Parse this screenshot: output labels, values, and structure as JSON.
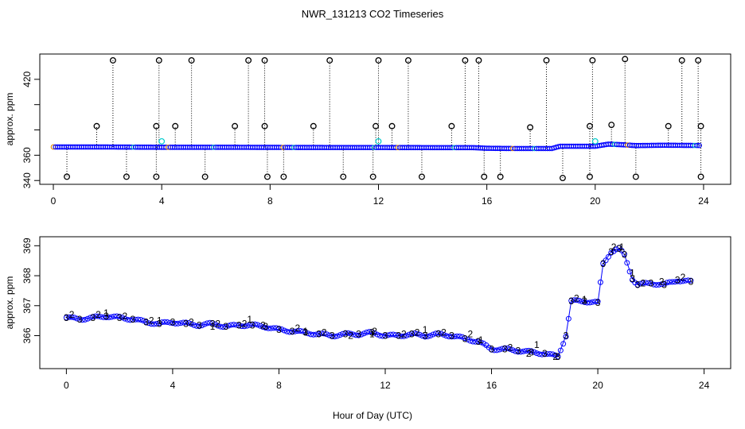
{
  "figure": {
    "title": "NWR_131213  CO2 Timeseries",
    "xlabel": "Hour of Day (UTC)"
  },
  "chart_data": [
    {
      "type": "scatter",
      "name": "top-panel",
      "ylabel": "approx. ppm",
      "xlim": [
        -0.5,
        25
      ],
      "ylim": [
        337,
        440
      ],
      "xticks": [
        0,
        4,
        8,
        12,
        16,
        20,
        24
      ],
      "xtick_labels": [
        "0",
        "4",
        "8",
        "12",
        "16",
        "20",
        "24"
      ],
      "yticks": [
        340,
        360,
        380,
        400,
        420
      ],
      "ytick_labels": [
        "340",
        "360",
        "",
        "",
        "420"
      ],
      "baseline": {
        "color": "#0000ff",
        "x": [
          0,
          2,
          4,
          6,
          8,
          10,
          12,
          14,
          15.5,
          16,
          17,
          18.4,
          18.7,
          20.0,
          20.5,
          21.0,
          21.5,
          22.5,
          23.9
        ],
        "y": [
          366.5,
          366.5,
          366.3,
          366.3,
          366.2,
          366.1,
          366.1,
          366.0,
          366.0,
          365.5,
          365.3,
          365.3,
          367.1,
          367.1,
          368.8,
          368.3,
          367.6,
          367.9,
          367.7
        ]
      },
      "high_spikes": {
        "color": "#000000",
        "x": [
          2.2,
          3.9,
          5.1,
          7.2,
          7.8,
          10.2,
          12.0,
          13.1,
          15.2,
          15.7,
          18.2,
          19.9,
          21.1,
          23.2,
          23.8
        ],
        "y": [
          435,
          435,
          435,
          435,
          435,
          435,
          435,
          435,
          435,
          435,
          435,
          435,
          436,
          435,
          435
        ]
      },
      "mid_spikes": {
        "color": "#000000",
        "x": [
          1.6,
          3.8,
          4.5,
          6.7,
          7.8,
          9.6,
          11.9,
          12.5,
          14.7,
          17.6,
          19.8,
          20.6,
          22.7,
          23.9
        ],
        "y": [
          383,
          383,
          383,
          383,
          383,
          383,
          383,
          383,
          383,
          382,
          383,
          384,
          383,
          383
        ]
      },
      "low_spikes": {
        "color": "#000000",
        "x": [
          0.5,
          2.7,
          3.8,
          5.6,
          7.9,
          8.5,
          10.7,
          11.8,
          13.6,
          15.9,
          16.5,
          18.8,
          19.8,
          21.5,
          23.9
        ],
        "y": [
          343,
          343,
          343,
          343,
          343,
          343,
          343,
          343,
          343,
          343,
          343,
          342,
          343,
          343,
          343
        ]
      },
      "cyan_points": {
        "color": "#00cccc",
        "x": [
          4.0,
          12.0,
          20.0
        ],
        "y": [
          371,
          371,
          371
        ]
      }
    },
    {
      "type": "scatter",
      "name": "bottom-panel",
      "ylabel": "approx. ppm",
      "xlim": [
        -1,
        25
      ],
      "ylim": [
        364.9,
        369.3
      ],
      "xticks": [
        0,
        4,
        8,
        12,
        16,
        20,
        24
      ],
      "xtick_labels": [
        "0",
        "4",
        "8",
        "12",
        "16",
        "20",
        "24"
      ],
      "yticks": [
        366,
        367,
        368,
        369
      ],
      "ytick_labels": [
        "366",
        "367",
        "368",
        "369"
      ],
      "series": [
        {
          "name": "3",
          "color": "#0000ff",
          "x": [
            0,
            0.5,
            1,
            1.5,
            2,
            2.5,
            3,
            3.5,
            4,
            4.5,
            5,
            5.5,
            6,
            6.5,
            7,
            7.5,
            8,
            8.5,
            9,
            9.5,
            10,
            10.5,
            11,
            11.5,
            12,
            12.5,
            13,
            13.5,
            14,
            14.5,
            15,
            15.5,
            16,
            16.5,
            17,
            17.5,
            18,
            18.5,
            18.8,
            19,
            19.5,
            20,
            20.2,
            20.5,
            20.8,
            21,
            21.3,
            21.5,
            22,
            22.5,
            23,
            23.5
          ],
          "y": [
            366.6,
            366.55,
            366.6,
            366.65,
            366.6,
            366.55,
            366.45,
            366.4,
            366.45,
            366.4,
            366.35,
            366.4,
            366.3,
            366.35,
            366.35,
            366.3,
            366.2,
            366.15,
            366.1,
            366.05,
            366.0,
            366.05,
            366.05,
            366.1,
            366.0,
            366.0,
            366.05,
            366.0,
            366.05,
            366.0,
            365.9,
            365.8,
            365.55,
            365.55,
            365.5,
            365.45,
            365.4,
            365.3,
            366.0,
            367.15,
            367.15,
            367.1,
            368.4,
            368.8,
            368.9,
            368.7,
            367.9,
            367.7,
            367.75,
            367.7,
            367.85,
            367.8
          ]
        },
        {
          "name": "2",
          "color": "#00bb00",
          "x": [
            0.2,
            1.2,
            2.2,
            3.2,
            4.7,
            5.7,
            6.7,
            7.4,
            8.7,
            9.7,
            10.7,
            11.6,
            12.7,
            13.2,
            14.2,
            15.2,
            16.7,
            17.4,
            18.4,
            19.2,
            20.6,
            21.7,
            22.4,
            23.2
          ],
          "y": [
            366.7,
            366.7,
            366.65,
            366.5,
            366.45,
            366.4,
            366.4,
            366.35,
            366.25,
            366.1,
            366.0,
            366.15,
            366.05,
            366.1,
            366.1,
            366.05,
            365.6,
            365.4,
            365.3,
            367.25,
            368.95,
            367.75,
            367.8,
            367.95
          ]
        },
        {
          "name": "1",
          "color": "#ff0000",
          "x": [
            1.5,
            3.5,
            5.5,
            6.9,
            9.0,
            11.5,
            13.5,
            15.6,
            17.7,
            19.5,
            20.9,
            21.3
          ],
          "y": [
            366.75,
            366.5,
            366.3,
            366.55,
            366.15,
            366.05,
            366.2,
            365.85,
            365.7,
            367.2,
            368.95,
            368.1
          ]
        }
      ]
    }
  ]
}
